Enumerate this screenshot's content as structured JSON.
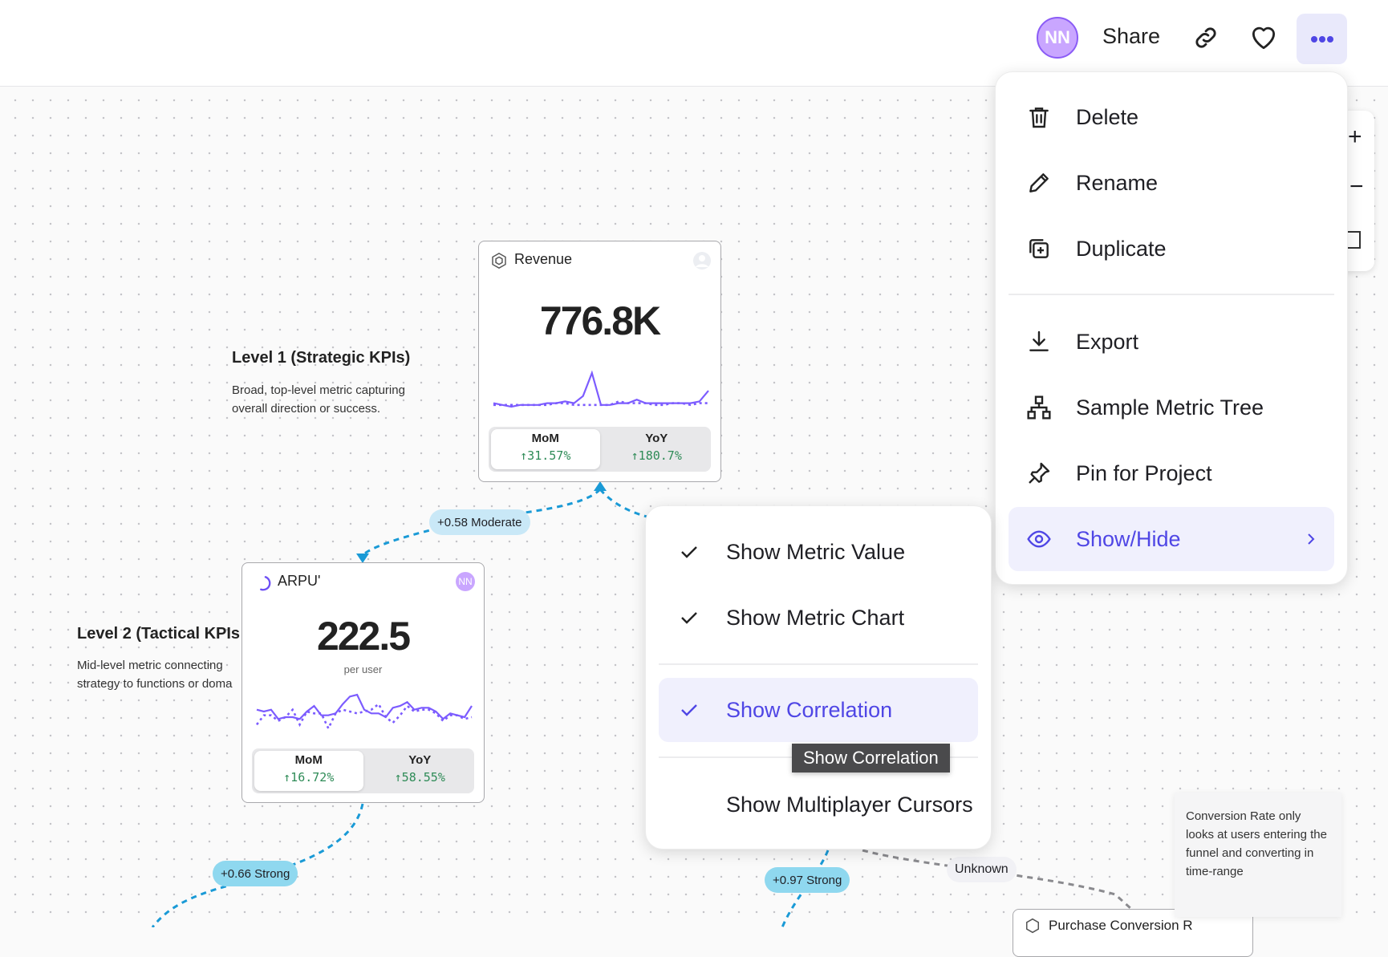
{
  "topbar": {
    "avatar_initials": "NN",
    "share_label": "Share",
    "icons": [
      "link-icon",
      "heart-icon",
      "more-icon"
    ],
    "accent": "#4f46e5"
  },
  "main_menu": {
    "items": [
      {
        "label": "Delete",
        "icon": "trash-icon"
      },
      {
        "label": "Rename",
        "icon": "pencil-icon"
      },
      {
        "label": "Duplicate",
        "icon": "duplicate-icon"
      },
      {
        "label": "Export",
        "icon": "download-icon"
      },
      {
        "label": "Sample Metric Tree",
        "icon": "tree-icon"
      },
      {
        "label": "Pin for Project",
        "icon": "pin-icon"
      },
      {
        "label": "Show/Hide",
        "icon": "eye-icon",
        "active": true
      }
    ]
  },
  "submenu": {
    "items": [
      {
        "label": "Show Metric Value",
        "checked": true
      },
      {
        "label": "Show Metric Chart",
        "checked": true
      },
      {
        "label": "Show Correlation",
        "checked": true,
        "active": true
      },
      {
        "label": "Show Multiplayer Cursors",
        "checked": false
      }
    ],
    "tooltip": "Show Correlation"
  },
  "levels": [
    {
      "title": "Level 1 (Strategic KPIs)",
      "desc": "Broad, top-level metric capturing overall direction or success."
    },
    {
      "title": "Level 2 (Tactical KPIs",
      "desc": "Mid-level metric connecting strategy to functions or doma"
    }
  ],
  "cards": {
    "revenue": {
      "title": "Revenue",
      "value": "776.8K",
      "mom_label": "MoM",
      "mom": "↑31.57%",
      "yoy_label": "YoY",
      "yoy": "↑180.7%",
      "series": [
        5,
        4,
        3,
        4,
        4,
        4,
        5,
        5,
        6,
        5,
        9,
        22,
        4,
        4,
        5,
        5,
        7,
        5,
        5,
        5,
        5,
        5,
        5,
        6,
        12
      ],
      "compare": [
        4,
        4,
        4,
        4,
        4,
        4,
        4,
        5,
        5,
        4,
        4,
        4,
        4,
        4,
        6,
        5,
        5,
        5,
        4,
        4,
        5,
        5,
        4,
        5,
        5
      ]
    },
    "arpu": {
      "title": "ARPU'",
      "avatar": "NN",
      "value": "222.5",
      "unit": "per user",
      "mom_label": "MoM",
      "mom": "↑16.72%",
      "yoy_label": "YoY",
      "yoy": "↑58.55%",
      "series": [
        10,
        9,
        10,
        5,
        6,
        6,
        5,
        9,
        12,
        7,
        7,
        8,
        13,
        17,
        18,
        10,
        8,
        8,
        6,
        11,
        12,
        14,
        10,
        11,
        11,
        9,
        5,
        8,
        7,
        6,
        12
      ],
      "compare": [
        2,
        7,
        7,
        4,
        6,
        10,
        2,
        9,
        8,
        8,
        0,
        8,
        10,
        9,
        8,
        9,
        10,
        13,
        6,
        3,
        7,
        12,
        9,
        10,
        10,
        8,
        4,
        7,
        7,
        5,
        6
      ]
    },
    "purchase": {
      "title": "Purchase Conversion R"
    }
  },
  "correlations": {
    "c1": "+0.58 Moderate",
    "c2": "+0.66 Strong",
    "c3": "+0.97 Strong",
    "c4": "Unknown"
  },
  "note": "Conversion Rate only looks at users entering the funnel and converting in time-range",
  "colors": {
    "line": "#7c5cff",
    "edge": "#1a9ad6",
    "positive": "#2e8b57"
  }
}
